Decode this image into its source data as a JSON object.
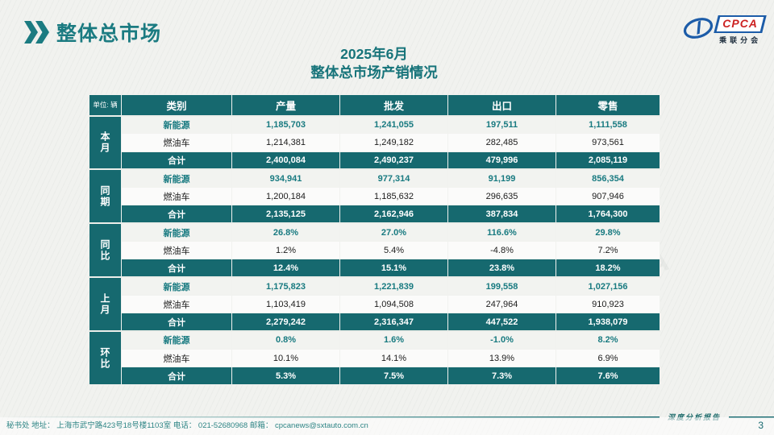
{
  "page": {
    "header_title": "整体总市场",
    "slide_title_line1": "2025年6月",
    "slide_title_line2": "整体总市场产销情况",
    "report_label": "深度分析报告",
    "footer_text": "秘书处  地址： 上海市武宁路423号18号楼1103室  电话： 021-52680968   邮箱： cpcanews@sxtauto.com.cn",
    "page_number": "3",
    "watermark": "CPCA",
    "accent_color": "#16696f"
  },
  "logo": {
    "brand": "CPCA",
    "brand_cn": "乘联分会"
  },
  "table": {
    "unit_label": "单位: 辆",
    "columns": [
      "类别",
      "产量",
      "批发",
      "出口",
      "零售"
    ],
    "groups": [
      {
        "label": "本月",
        "rows": [
          {
            "category": "新能源",
            "type": "nev",
            "values": [
              "1,185,703",
              "1,241,055",
              "197,511",
              "1,111,558"
            ]
          },
          {
            "category": "燃油车",
            "type": "fuel",
            "values": [
              "1,214,381",
              "1,249,182",
              "282,485",
              "973,561"
            ]
          },
          {
            "category": "合计",
            "type": "total",
            "values": [
              "2,400,084",
              "2,490,237",
              "479,996",
              "2,085,119"
            ]
          }
        ]
      },
      {
        "label": "同期",
        "rows": [
          {
            "category": "新能源",
            "type": "nev",
            "values": [
              "934,941",
              "977,314",
              "91,199",
              "856,354"
            ]
          },
          {
            "category": "燃油车",
            "type": "fuel",
            "values": [
              "1,200,184",
              "1,185,632",
              "296,635",
              "907,946"
            ]
          },
          {
            "category": "合计",
            "type": "total",
            "values": [
              "2,135,125",
              "2,162,946",
              "387,834",
              "1,764,300"
            ]
          }
        ]
      },
      {
        "label": "同比",
        "rows": [
          {
            "category": "新能源",
            "type": "nev",
            "values": [
              "26.8%",
              "27.0%",
              "116.6%",
              "29.8%"
            ]
          },
          {
            "category": "燃油车",
            "type": "fuel",
            "values": [
              "1.2%",
              "5.4%",
              "-4.8%",
              "7.2%"
            ]
          },
          {
            "category": "合计",
            "type": "total",
            "values": [
              "12.4%",
              "15.1%",
              "23.8%",
              "18.2%"
            ]
          }
        ]
      },
      {
        "label": "上月",
        "rows": [
          {
            "category": "新能源",
            "type": "nev",
            "values": [
              "1,175,823",
              "1,221,839",
              "199,558",
              "1,027,156"
            ]
          },
          {
            "category": "燃油车",
            "type": "fuel",
            "values": [
              "1,103,419",
              "1,094,508",
              "247,964",
              "910,923"
            ]
          },
          {
            "category": "合计",
            "type": "total",
            "values": [
              "2,279,242",
              "2,316,347",
              "447,522",
              "1,938,079"
            ]
          }
        ]
      },
      {
        "label": "环比",
        "rows": [
          {
            "category": "新能源",
            "type": "nev",
            "values": [
              "0.8%",
              "1.6%",
              "-1.0%",
              "8.2%"
            ]
          },
          {
            "category": "燃油车",
            "type": "fuel",
            "values": [
              "10.1%",
              "14.1%",
              "13.9%",
              "6.9%"
            ]
          },
          {
            "category": "合计",
            "type": "total",
            "values": [
              "5.3%",
              "7.5%",
              "7.3%",
              "7.6%"
            ]
          }
        ]
      }
    ]
  }
}
